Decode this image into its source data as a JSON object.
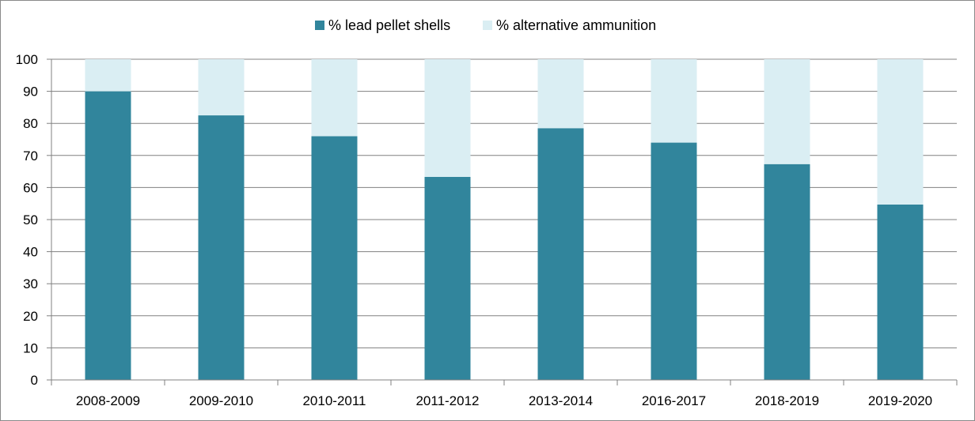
{
  "chart_data": {
    "type": "bar",
    "stacked": true,
    "categories": [
      "2008-2009",
      "2009-2010",
      "2010-2011",
      "2011-2012",
      "2013-2014",
      "2016-2017",
      "2018-2019",
      "2019-2020"
    ],
    "series": [
      {
        "name": "% lead pellet shells",
        "color": "#31859C",
        "values": [
          90,
          82.5,
          76,
          63.3,
          78.5,
          74,
          67.3,
          54.7
        ]
      },
      {
        "name": "% alternative ammunition",
        "color": "#DAEEF3",
        "values": [
          10,
          17.5,
          24,
          36.7,
          21.5,
          26,
          32.7,
          45.3
        ]
      }
    ],
    "ylim": [
      0,
      100
    ],
    "yticks": [
      "0",
      "10",
      "20",
      "30",
      "40",
      "50",
      "60",
      "70",
      "80",
      "90",
      "100"
    ],
    "grid": true,
    "legend_position": "top-center"
  }
}
